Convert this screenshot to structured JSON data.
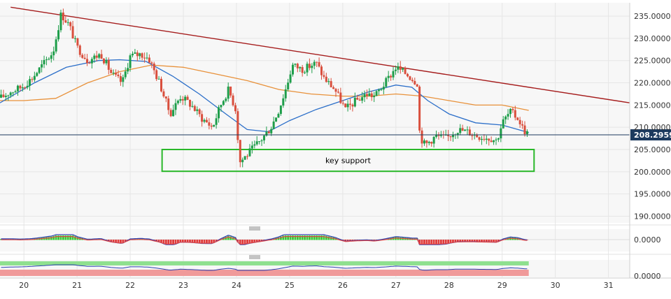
{
  "chart_data": {
    "type": "candlestick",
    "colors": {
      "up": "#1e9e4a",
      "down": "#d94f3d",
      "ma_blue": "#2c6fc9",
      "ma_orange": "#e8913a",
      "trendline": "#a51c1c",
      "support_box": "#2ab82a",
      "price_line": "#1c3a5e",
      "price_tag_bg": "#1c3a5e"
    },
    "xlim": [
      19.55,
      31.4
    ],
    "ylim": [
      188.5,
      238.0
    ],
    "x_ticks": [
      "20",
      "21",
      "22",
      "23",
      "24",
      "25",
      "26",
      "27",
      "28",
      "29",
      "30",
      "31"
    ],
    "y_ticks": [
      "235.0000",
      "230.0000",
      "225.0000",
      "220.0000",
      "215.0000",
      "210.0000",
      "205.0000",
      "200.0000",
      "195.0000",
      "190.0000"
    ],
    "current_price": "208.29597",
    "current_price_value": 208.296,
    "price_path": [
      [
        19.55,
        216.5
      ],
      [
        19.75,
        218.0
      ],
      [
        19.95,
        219.0
      ],
      [
        20.15,
        221.0
      ],
      [
        20.35,
        224.0
      ],
      [
        20.55,
        227.0
      ],
      [
        20.7,
        235.5
      ],
      [
        20.85,
        233.0
      ],
      [
        21.0,
        228.0
      ],
      [
        21.2,
        225.0
      ],
      [
        21.45,
        226.5
      ],
      [
        21.65,
        222.0
      ],
      [
        21.85,
        220.0
      ],
      [
        22.0,
        226.0
      ],
      [
        22.2,
        226.5
      ],
      [
        22.35,
        225.5
      ],
      [
        22.55,
        220.0
      ],
      [
        22.75,
        213.0
      ],
      [
        22.95,
        217.0
      ],
      [
        23.15,
        215.0
      ],
      [
        23.35,
        212.0
      ],
      [
        23.55,
        210.0
      ],
      [
        23.7,
        215.0
      ],
      [
        23.85,
        218.5
      ],
      [
        24.0,
        213.5
      ],
      [
        24.05,
        202.0
      ],
      [
        24.25,
        204.5
      ],
      [
        24.45,
        207.0
      ],
      [
        24.65,
        210.0
      ],
      [
        24.8,
        214.0
      ],
      [
        24.95,
        219.5
      ],
      [
        25.05,
        224.0
      ],
      [
        25.25,
        223.0
      ],
      [
        25.5,
        224.5
      ],
      [
        25.65,
        221.0
      ],
      [
        25.85,
        218.5
      ],
      [
        26.05,
        214.0
      ],
      [
        26.25,
        216.0
      ],
      [
        26.45,
        217.5
      ],
      [
        26.6,
        217.0
      ],
      [
        26.8,
        220.0
      ],
      [
        27.0,
        223.5
      ],
      [
        27.2,
        222.0
      ],
      [
        27.4,
        220.0
      ],
      [
        27.45,
        208.0
      ],
      [
        27.55,
        206.0
      ],
      [
        27.75,
        208.0
      ],
      [
        27.95,
        207.5
      ],
      [
        28.15,
        209.5
      ],
      [
        28.35,
        209.0
      ],
      [
        28.55,
        208.0
      ],
      [
        28.8,
        207.5
      ],
      [
        28.9,
        207.0
      ],
      [
        29.0,
        211.0
      ],
      [
        29.15,
        213.5
      ],
      [
        29.3,
        212.0
      ],
      [
        29.4,
        209.5
      ],
      [
        29.5,
        208.3
      ]
    ],
    "ma_blue": [
      [
        19.55,
        215.5
      ],
      [
        20.2,
        220.0
      ],
      [
        20.8,
        223.5
      ],
      [
        21.4,
        225.0
      ],
      [
        21.8,
        225.2
      ],
      [
        22.3,
        224.8
      ],
      [
        22.8,
        221.5
      ],
      [
        23.3,
        217.5
      ],
      [
        23.8,
        213.0
      ],
      [
        24.2,
        209.5
      ],
      [
        24.6,
        209.0
      ],
      [
        25.0,
        211.5
      ],
      [
        25.5,
        214.0
      ],
      [
        26.0,
        216.0
      ],
      [
        26.5,
        218.0
      ],
      [
        27.0,
        219.5
      ],
      [
        27.3,
        219.0
      ],
      [
        27.6,
        216.0
      ],
      [
        28.0,
        213.0
      ],
      [
        28.5,
        211.0
      ],
      [
        29.0,
        210.5
      ],
      [
        29.5,
        208.8
      ]
    ],
    "ma_orange": [
      [
        19.55,
        216.0
      ],
      [
        20.0,
        216.0
      ],
      [
        20.6,
        216.5
      ],
      [
        21.2,
        220.0
      ],
      [
        21.8,
        222.5
      ],
      [
        22.4,
        224.0
      ],
      [
        23.0,
        223.5
      ],
      [
        23.6,
        222.0
      ],
      [
        24.2,
        220.5
      ],
      [
        24.8,
        218.5
      ],
      [
        25.4,
        217.5
      ],
      [
        26.0,
        217.0
      ],
      [
        26.5,
        217.0
      ],
      [
        27.0,
        217.5
      ],
      [
        27.5,
        217.0
      ],
      [
        28.0,
        216.0
      ],
      [
        28.5,
        215.0
      ],
      [
        29.0,
        215.0
      ],
      [
        29.5,
        213.8
      ]
    ],
    "trendline": [
      [
        19.75,
        237.0
      ],
      [
        31.4,
        215.5
      ]
    ],
    "annotations": [
      {
        "label": "key support",
        "x0": 22.6,
        "x1": 29.6,
        "y0": 200.1,
        "y1": 205.0
      }
    ],
    "indicators": [
      {
        "tick_label": "0.0000"
      },
      {
        "tick_label": "0.0000"
      }
    ]
  }
}
